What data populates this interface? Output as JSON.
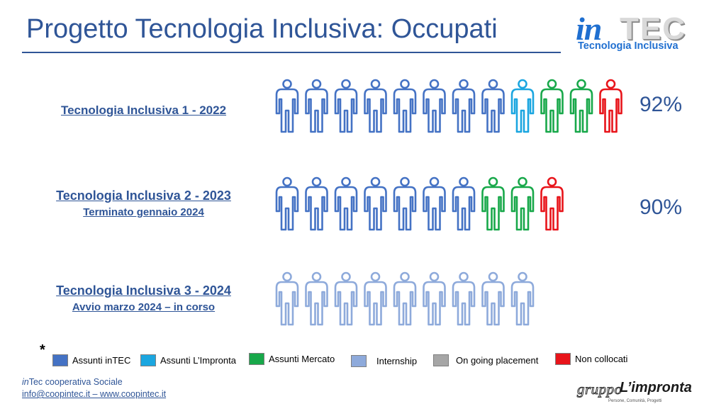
{
  "slide": {
    "title": "Progetto Tecnologia Inclusiva: Occupati"
  },
  "logo": {
    "in": "in",
    "tec": "TEC",
    "subtitle": "Tecnologia Inclusiva"
  },
  "colors": {
    "assunti_intec": "#4472c4",
    "assunti_limpronta": "#1ba6e0",
    "assunti_mercato": "#18a84a",
    "internship": "#8eaadb",
    "on_going_placement": "#a6a6a6",
    "non_collocati": "#e8141a",
    "title_blue": "#2f5597"
  },
  "rows": [
    {
      "label": "Tecnologia Inclusiva 1 - 2022",
      "sublabel": "",
      "percent": "92%",
      "people": [
        "assunti_intec",
        "assunti_intec",
        "assunti_intec",
        "assunti_intec",
        "assunti_intec",
        "assunti_intec",
        "assunti_intec",
        "assunti_intec",
        "assunti_limpronta",
        "assunti_mercato",
        "assunti_mercato",
        "non_collocati"
      ]
    },
    {
      "label": "Tecnologia Inclusiva 2 - 2023",
      "sublabel": "Terminato gennaio 2024",
      "percent": "90%",
      "people": [
        "assunti_intec",
        "assunti_intec",
        "assunti_intec",
        "assunti_intec",
        "assunti_intec",
        "assunti_intec",
        "assunti_intec",
        "assunti_mercato",
        "assunti_mercato",
        "non_collocati"
      ]
    },
    {
      "label": "Tecnologia Inclusiva 3 - 2024",
      "sublabel": "Avvio marzo 2024 – in corso",
      "percent": "",
      "people": [
        "internship",
        "internship",
        "internship",
        "internship",
        "internship",
        "internship",
        "internship",
        "internship",
        "internship"
      ]
    }
  ],
  "legend": {
    "marker": "*",
    "items": [
      {
        "key": "assunti_intec",
        "label": "Assunti inTEC"
      },
      {
        "key": "assunti_limpronta",
        "label": "Assunti L’Impronta"
      },
      {
        "key": "assunti_mercato",
        "label": "Assunti Mercato"
      },
      {
        "key": "internship",
        "label": "Internship"
      },
      {
        "key": "on_going_placement",
        "label": "On going placement"
      },
      {
        "key": "non_collocati",
        "label": "Non collocati"
      }
    ]
  },
  "footer": {
    "org_prefix": "in",
    "org_rest": "Tec cooperativa Sociale",
    "contacts": "info@coopintec.it – www.coopintec.it"
  },
  "partner_logo": {
    "word": "gruppo",
    "brand": "L’impronta",
    "tagline": "Persone, Comunità, Progetti"
  },
  "icons": [
    "person-icon"
  ]
}
